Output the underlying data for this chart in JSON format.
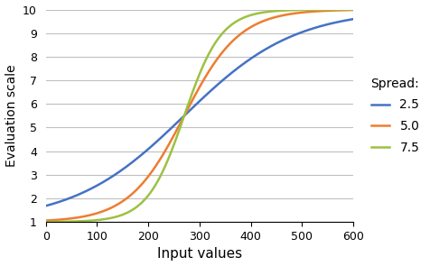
{
  "title": "",
  "xlabel": "Input values",
  "ylabel": "Evaluation scale",
  "xlim": [
    0,
    600
  ],
  "ylim": [
    1,
    10
  ],
  "xticks": [
    0,
    100,
    200,
    300,
    400,
    500,
    600
  ],
  "yticks": [
    1,
    2,
    3,
    4,
    5,
    6,
    7,
    8,
    9,
    10
  ],
  "midpoint": 270,
  "series": [
    {
      "spread": 2.5,
      "color": "#4472c4",
      "label": "2.5"
    },
    {
      "spread": 5.0,
      "color": "#ed7d31",
      "label": "5.0"
    },
    {
      "spread": 7.5,
      "color": "#9dc143",
      "label": "7.5"
    }
  ],
  "legend_title": "Spread:",
  "background_color": "#ffffff",
  "grid_color": "#bfbfbf",
  "xlabel_fontsize": 11,
  "ylabel_fontsize": 10,
  "tick_fontsize": 9,
  "legend_fontsize": 10
}
